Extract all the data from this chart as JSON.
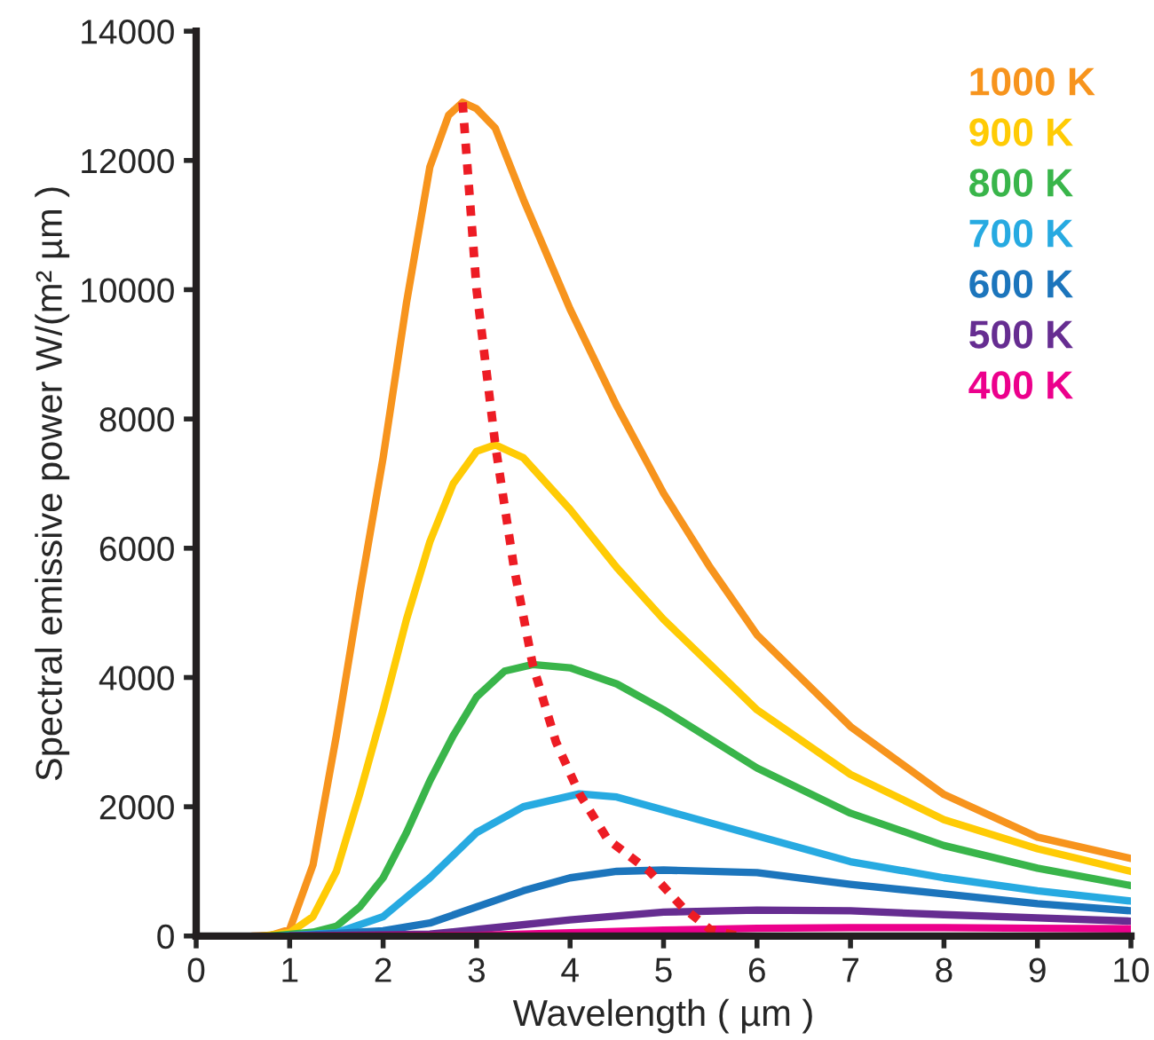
{
  "chart_data": {
    "type": "line",
    "xlabel": "Wavelength ( µm )",
    "ylabel": "Spectral emissive power W/(m² µm )",
    "xlim": [
      0,
      10
    ],
    "ylim": [
      0,
      14000
    ],
    "xticks": [
      0,
      1,
      2,
      3,
      4,
      5,
      6,
      7,
      8,
      9,
      10
    ],
    "yticks": [
      0,
      2000,
      4000,
      6000,
      8000,
      10000,
      12000,
      14000
    ],
    "grid": false,
    "legend": "top right",
    "line_style": "solid",
    "marker": "none",
    "series": [
      {
        "name": "1000 K",
        "color": "#f7941d",
        "x": [
          0.6,
          0.8,
          1.0,
          1.25,
          1.5,
          1.75,
          2.0,
          2.25,
          2.5,
          2.7,
          2.85,
          3.0,
          3.2,
          3.5,
          4.0,
          4.5,
          5.0,
          5.5,
          6.0,
          7.0,
          8.0,
          9.0,
          10.0
        ],
        "values": [
          0,
          10,
          100,
          1100,
          3100,
          5300,
          7400,
          9800,
          11900,
          12700,
          12900,
          12800,
          12500,
          11400,
          9700,
          8200,
          6850,
          5700,
          4660,
          3240,
          2190,
          1530,
          1200
        ]
      },
      {
        "name": "900 K",
        "color": "#ffcb05",
        "x": [
          0.7,
          1.0,
          1.25,
          1.5,
          1.75,
          2.0,
          2.25,
          2.5,
          2.75,
          3.0,
          3.2,
          3.5,
          4.0,
          4.5,
          5.0,
          6.0,
          7.0,
          8.0,
          9.0,
          10.0
        ],
        "values": [
          0,
          50,
          300,
          1000,
          2200,
          3500,
          4900,
          6100,
          7000,
          7500,
          7600,
          7400,
          6600,
          5700,
          4900,
          3500,
          2500,
          1800,
          1350,
          1000
        ]
      },
      {
        "name": "800 K",
        "color": "#39b54a",
        "x": [
          0.8,
          1.25,
          1.5,
          1.75,
          2.0,
          2.25,
          2.5,
          2.75,
          3.0,
          3.3,
          3.6,
          4.0,
          4.5,
          5.0,
          6.0,
          7.0,
          8.0,
          9.0,
          10.0
        ],
        "values": [
          0,
          60,
          150,
          450,
          900,
          1600,
          2400,
          3100,
          3700,
          4100,
          4200,
          4150,
          3900,
          3500,
          2600,
          1900,
          1400,
          1050,
          780
        ]
      },
      {
        "name": "700 K",
        "color": "#27aae1",
        "x": [
          0.9,
          1.5,
          2.0,
          2.5,
          3.0,
          3.5,
          4.1,
          4.5,
          5.0,
          6.0,
          7.0,
          8.0,
          9.0,
          10.0
        ],
        "values": [
          0,
          50,
          300,
          900,
          1600,
          2000,
          2200,
          2150,
          1950,
          1550,
          1150,
          900,
          700,
          540
        ]
      },
      {
        "name": "600 K",
        "color": "#1c75bc",
        "x": [
          1.0,
          2.0,
          2.5,
          3.0,
          3.5,
          4.0,
          4.5,
          5.0,
          6.0,
          7.0,
          8.0,
          9.0,
          10.0
        ],
        "values": [
          0,
          80,
          200,
          450,
          700,
          900,
          1000,
          1020,
          980,
          800,
          650,
          500,
          390
        ]
      },
      {
        "name": "500 K",
        "color": "#662d91",
        "x": [
          1.0,
          2.5,
          3.0,
          4.0,
          5.0,
          6.0,
          7.0,
          8.0,
          9.0,
          10.0
        ],
        "values": [
          0,
          30,
          100,
          250,
          370,
          400,
          390,
          330,
          280,
          230
        ]
      },
      {
        "name": "400 K",
        "color": "#ec008c",
        "x": [
          1.0,
          3.0,
          4.0,
          5.0,
          6.0,
          7.0,
          8.0,
          9.0,
          10.0
        ],
        "values": [
          0,
          10,
          50,
          90,
          120,
          130,
          130,
          120,
          110
        ]
      },
      {
        "color": "#ed1c24",
        "line_style": "dotted",
        "x": [
          2.85,
          3.0,
          3.2,
          3.4,
          3.6,
          3.85,
          4.1,
          4.4,
          4.85,
          5.2,
          5.5,
          5.8
        ],
        "values": [
          12900,
          10000,
          7600,
          5700,
          4200,
          3000,
          2200,
          1500,
          1000,
          450,
          100,
          0
        ]
      }
    ]
  }
}
